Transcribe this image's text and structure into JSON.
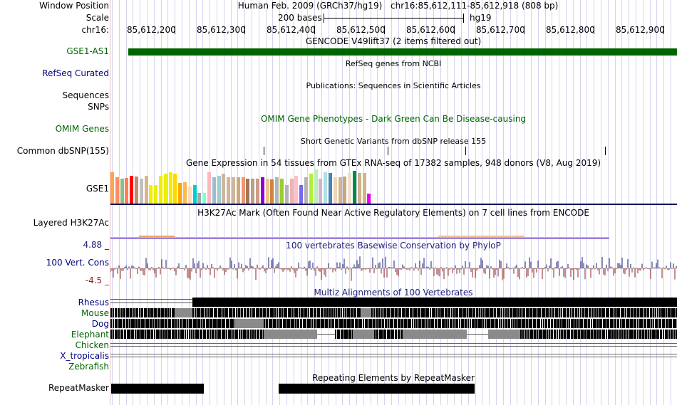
{
  "header": {
    "window_position_label": "Window Position",
    "scale_label": "Scale",
    "chrom_label": "chr16:",
    "assembly": "Human Feb. 2009 (GRCh37/hg19)",
    "position": "chr16:85,612,111-85,612,918 (808 bp)",
    "scale_text": "200 bases",
    "db": "hg19",
    "ruler": [
      "85,612,200",
      "85,612,300",
      "85,612,400",
      "85,612,500",
      "85,612,600",
      "85,612,700",
      "85,612,800",
      "85,612,900"
    ]
  },
  "tracks": {
    "gencode": {
      "title": "GENCODE V49lift37 (2 items filtered out)",
      "item": "GSE1-AS1",
      "color": "#006400"
    },
    "refseq": {
      "label": "RefSeq Curated",
      "title": "RefSeq genes from NCBI"
    },
    "publications": {
      "label": "Sequences",
      "title": "Publications: Sequences in Scientific Articles"
    },
    "snps": {
      "label": "SNPs"
    },
    "omim": {
      "label": "OMIM Genes",
      "title": "OMIM Gene Phenotypes - Dark Green Can Be Disease-causing",
      "color": "#006400"
    },
    "dbsnp": {
      "label": "Common dbSNP(155)",
      "title": "Short Genetic Variants from dbSNP release 155"
    },
    "gtex": {
      "label": "GSE1",
      "title": "Gene Expression in 54 tissues from GTEx RNA-seq of 17382 samples, 948 donors (V8, Aug 2019)",
      "values": [
        0.92,
        0.78,
        0.72,
        0.75,
        0.82,
        0.8,
        0.72,
        0.82,
        0.55,
        0.55,
        0.82,
        0.88,
        0.92,
        0.88,
        0.6,
        0.62,
        0.5,
        0.55,
        0.32,
        0.32,
        0.92,
        0.78,
        0.82,
        0.88,
        0.78,
        0.78,
        0.78,
        0.78,
        0.72,
        0.72,
        0.72,
        0.78,
        0.72,
        0.7,
        0.78,
        0.72,
        0.55,
        0.72,
        0.82,
        0.55,
        0.78,
        0.88,
        1.0,
        0.72,
        0.92,
        0.9,
        0.78,
        0.78,
        0.8,
        0.9,
        0.95,
        0.9,
        0.9,
        0.3
      ],
      "colors": [
        "#ffa54f",
        "#ff8c69",
        "#8fbc8f",
        "#ff7f50",
        "#ff0000",
        "#c58a70",
        "#c0c0c0",
        "#dcb48c",
        "#eeee00",
        "#eeee00",
        "#eeee00",
        "#eeee00",
        "#eeee00",
        "#ffd700",
        "#ffa500",
        "#ffb84d",
        "#ffdab9",
        "#00cdcd",
        "#a6a6a6",
        "#7fffd4",
        "#ffb6c1",
        "#9ac0cd",
        "#a3ccd3",
        "#cdb79e",
        "#cdb79e",
        "#cdb79e",
        "#cdaa7d",
        "#ee9572",
        "#a0785a",
        "#b8a08a",
        "#cd9b8a",
        "#9400d3",
        "#eec591",
        "#cd853f",
        "#b4b4b4",
        "#9acd32",
        "#b4b4b4",
        "#eeb4b4",
        "#ffc0cb",
        "#7a67ee",
        "#b4b4b4",
        "#b3ee3a",
        "#b8f0b8",
        "#cdb5cd",
        "#b0e0e6",
        "#4682b4",
        "#eed5b7",
        "#d2b48c",
        "#c8a878",
        "#eedfcc",
        "#008b45",
        "#cdb38b",
        "#d2b48c",
        "#ee00ee"
      ]
    },
    "h3k27ac": {
      "label": "Layered H3K27Ac",
      "title": "H3K27Ac Mark (Often Found Near Active Regulatory Elements) on 7 cell lines from ENCODE"
    },
    "conservation": {
      "label": "100 Vert. Cons",
      "title": "100 vertebrates Basewise Conservation by PhyloP",
      "max": "4.88 _",
      "min": "-4.5 _"
    },
    "multiz": {
      "title": "Multiz Alignments of 100 Vertebrates",
      "species": [
        "Rhesus",
        "Mouse",
        "Dog",
        "Elephant",
        "Chicken",
        "X_tropicalis",
        "Zebrafish"
      ]
    },
    "repeatmasker": {
      "label": "RepeatMasker",
      "title": "Repeating Elements by RepeatMasker"
    }
  }
}
